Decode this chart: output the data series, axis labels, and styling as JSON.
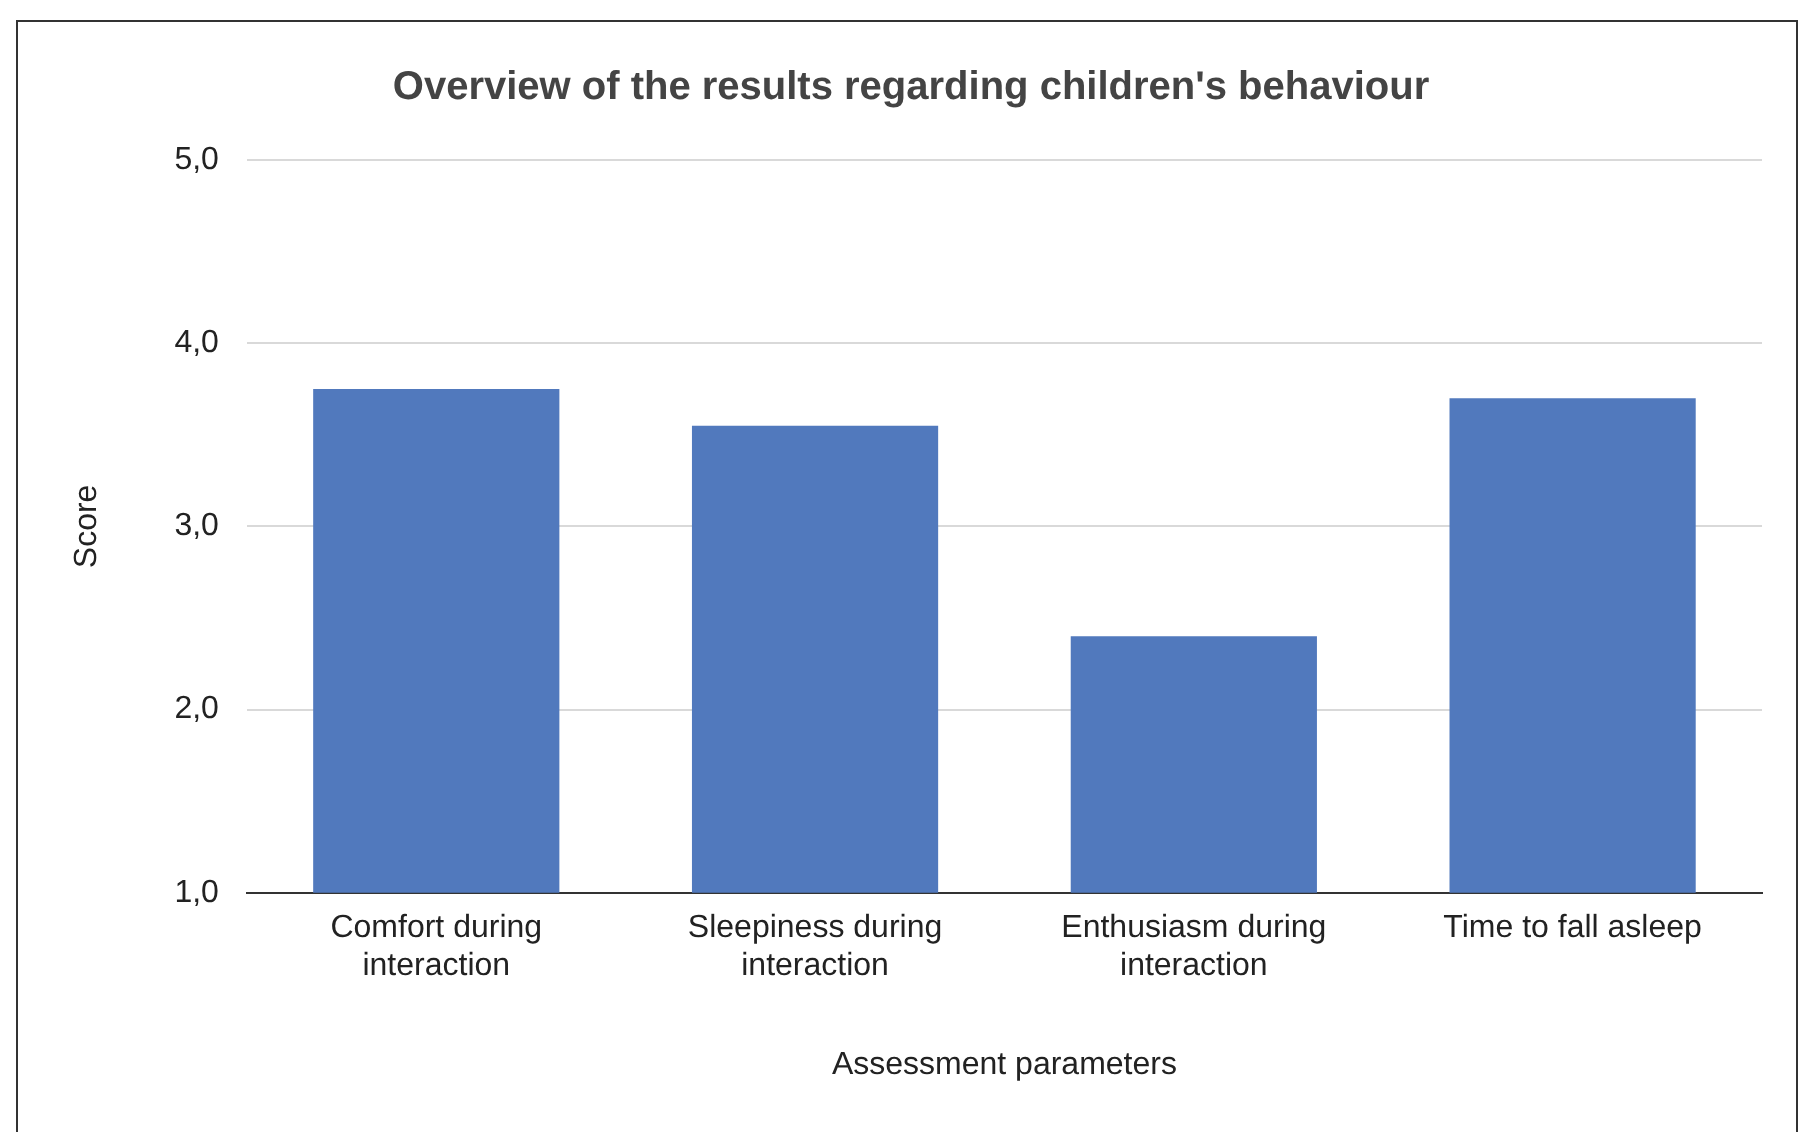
{
  "chart_data": {
    "type": "bar",
    "title": "Overview of the results regarding children's behaviour",
    "xlabel": "Assessment parameters",
    "ylabel": "Score",
    "categories": [
      "Comfort during interaction",
      "Sleepiness during interaction",
      "Enthusiasm during interaction",
      "Time to fall asleep"
    ],
    "values": [
      3.75,
      3.55,
      2.4,
      3.7
    ],
    "color": "#5179bd",
    "ylim": [
      1,
      5
    ],
    "yticks": [
      {
        "value": 1,
        "label": "1,0"
      },
      {
        "value": 2,
        "label": "2,0"
      },
      {
        "value": 3,
        "label": "3,0"
      },
      {
        "value": 4,
        "label": "4,0"
      },
      {
        "value": 5,
        "label": "5,0"
      }
    ],
    "grid": "y",
    "legend": false
  }
}
